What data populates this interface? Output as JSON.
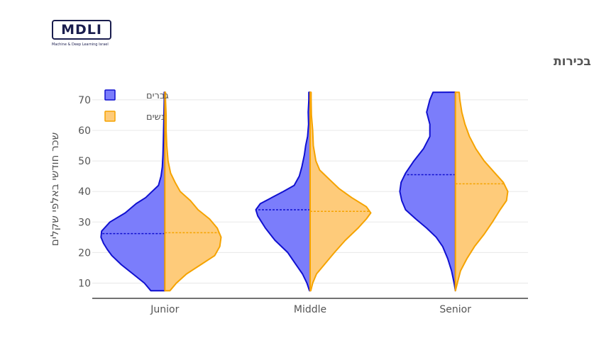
{
  "logo": {
    "text": "MDLI",
    "subtitle": "Machine & Deep Learning Israel"
  },
  "chart_data": {
    "type": "violin",
    "title": "שכר לפי מגדר ורמת בכירות",
    "ylabel": "שכר חודשי באלפי שקלים",
    "xlabel": "",
    "ylim": [
      5,
      73
    ],
    "yticks": [
      10,
      20,
      30,
      40,
      50,
      60,
      70
    ],
    "categories": [
      "Junior",
      "Middle",
      "Senior"
    ],
    "grid": true,
    "legend_position": "top-left",
    "series": [
      {
        "name": "גברים",
        "side": "negative",
        "color": "#7b7dfb",
        "line_color": "#1010d0",
        "medians": [
          26.2,
          34,
          45.5
        ],
        "range": [
          [
            7.5,
            72.5
          ],
          [
            7.5,
            72.5
          ],
          [
            7.5,
            72.5
          ]
        ],
        "density": [
          [
            [
              7.5,
              0.22
            ],
            [
              10,
              0.32
            ],
            [
              13,
              0.5
            ],
            [
              16,
              0.68
            ],
            [
              19,
              0.83
            ],
            [
              21,
              0.9
            ],
            [
              23,
              0.96
            ],
            [
              25,
              1.0
            ],
            [
              27,
              0.99
            ],
            [
              30,
              0.86
            ],
            [
              33,
              0.62
            ],
            [
              36,
              0.45
            ],
            [
              38,
              0.3
            ],
            [
              40,
              0.2
            ],
            [
              42,
              0.1
            ],
            [
              45,
              0.06
            ],
            [
              48,
              0.04
            ],
            [
              52,
              0.03
            ],
            [
              56,
              0.025
            ],
            [
              60,
              0.02
            ],
            [
              65,
              0.015
            ],
            [
              70,
              0.01
            ],
            [
              72.5,
              0.01
            ]
          ],
          [
            [
              7.5,
              0.01
            ],
            [
              10,
              0.05
            ],
            [
              13,
              0.12
            ],
            [
              16,
              0.22
            ],
            [
              20,
              0.35
            ],
            [
              24,
              0.55
            ],
            [
              28,
              0.7
            ],
            [
              30,
              0.76
            ],
            [
              32,
              0.82
            ],
            [
              34,
              0.85
            ],
            [
              36,
              0.78
            ],
            [
              38,
              0.6
            ],
            [
              40,
              0.42
            ],
            [
              42,
              0.25
            ],
            [
              45,
              0.17
            ],
            [
              48,
              0.13
            ],
            [
              52,
              0.09
            ],
            [
              55,
              0.07
            ],
            [
              58,
              0.04
            ],
            [
              62,
              0.025
            ],
            [
              66,
              0.03
            ],
            [
              70,
              0.02
            ],
            [
              72.5,
              0.02
            ]
          ],
          [
            [
              7.5,
              0.0
            ],
            [
              10,
              0.02
            ],
            [
              14,
              0.06
            ],
            [
              18,
              0.12
            ],
            [
              22,
              0.2
            ],
            [
              25,
              0.3
            ],
            [
              28,
              0.45
            ],
            [
              31,
              0.62
            ],
            [
              34,
              0.78
            ],
            [
              37,
              0.84
            ],
            [
              40,
              0.87
            ],
            [
              43,
              0.85
            ],
            [
              46,
              0.78
            ],
            [
              50,
              0.65
            ],
            [
              54,
              0.5
            ],
            [
              58,
              0.4
            ],
            [
              62,
              0.4
            ],
            [
              66,
              0.45
            ],
            [
              70,
              0.4
            ],
            [
              72.5,
              0.35
            ]
          ]
        ]
      },
      {
        "name": "נשים",
        "side": "positive",
        "color": "#fecb7a",
        "line_color": "#f5a300",
        "medians": [
          26.5,
          33.5,
          42.5
        ],
        "range": [
          [
            7.5,
            72.5
          ],
          [
            7.5,
            72.5
          ],
          [
            7.5,
            72.5
          ]
        ],
        "density": [
          [
            [
              7.5,
              0.08
            ],
            [
              10,
              0.18
            ],
            [
              13,
              0.34
            ],
            [
              16,
              0.56
            ],
            [
              19,
              0.78
            ],
            [
              22,
              0.86
            ],
            [
              25,
              0.88
            ],
            [
              28,
              0.82
            ],
            [
              31,
              0.7
            ],
            [
              34,
              0.52
            ],
            [
              37,
              0.4
            ],
            [
              40,
              0.24
            ],
            [
              43,
              0.16
            ],
            [
              46,
              0.09
            ],
            [
              50,
              0.05
            ],
            [
              55,
              0.03
            ],
            [
              60,
              0.02
            ],
            [
              65,
              0.02
            ],
            [
              70,
              0.01
            ],
            [
              72.5,
              0.01
            ]
          ],
          [
            [
              7.5,
              0.01
            ],
            [
              10,
              0.04
            ],
            [
              13,
              0.1
            ],
            [
              16,
              0.22
            ],
            [
              20,
              0.38
            ],
            [
              24,
              0.55
            ],
            [
              28,
              0.75
            ],
            [
              31,
              0.88
            ],
            [
              33,
              0.95
            ],
            [
              35,
              0.88
            ],
            [
              38,
              0.65
            ],
            [
              41,
              0.45
            ],
            [
              44,
              0.3
            ],
            [
              47,
              0.15
            ],
            [
              50,
              0.09
            ],
            [
              55,
              0.05
            ],
            [
              60,
              0.04
            ],
            [
              65,
              0.02
            ],
            [
              70,
              0.015
            ],
            [
              72.5,
              0.015
            ]
          ],
          [
            [
              7.5,
              0.0
            ],
            [
              10,
              0.03
            ],
            [
              14,
              0.08
            ],
            [
              18,
              0.18
            ],
            [
              22,
              0.3
            ],
            [
              26,
              0.45
            ],
            [
              30,
              0.58
            ],
            [
              34,
              0.7
            ],
            [
              37,
              0.8
            ],
            [
              40,
              0.82
            ],
            [
              43,
              0.75
            ],
            [
              46,
              0.62
            ],
            [
              50,
              0.45
            ],
            [
              54,
              0.32
            ],
            [
              58,
              0.22
            ],
            [
              62,
              0.15
            ],
            [
              66,
              0.1
            ],
            [
              70,
              0.07
            ],
            [
              72.5,
              0.06
            ]
          ]
        ]
      }
    ]
  }
}
